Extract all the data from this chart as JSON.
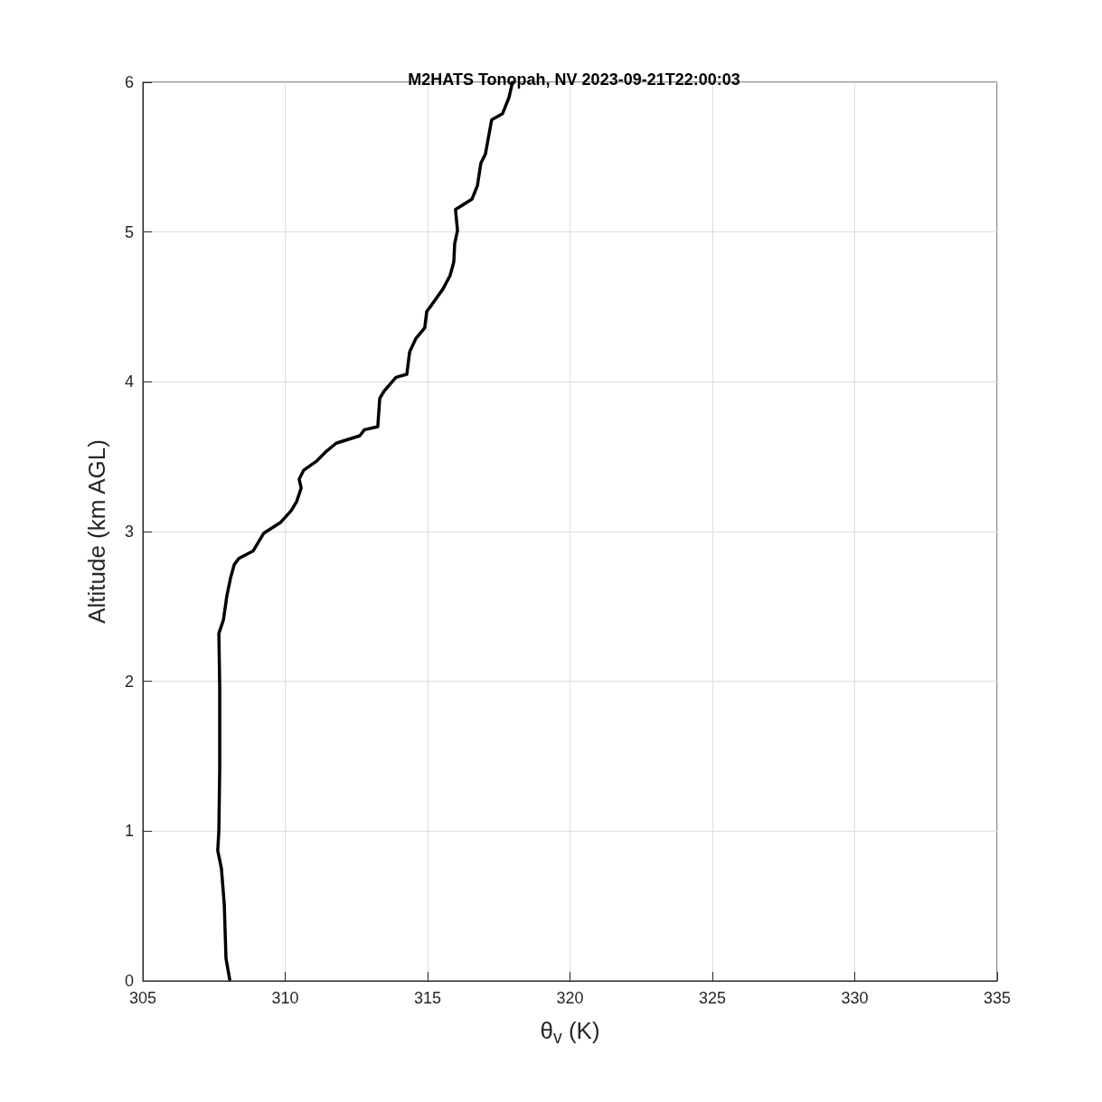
{
  "chart_data": {
    "type": "line",
    "title": "M2HATS Tonopah, NV 2023-09-21T22:00:03",
    "xlabel": "θ$_{v}$ (K)",
    "ylabel": "Altitude (km AGL)",
    "xlim": [
      305,
      335
    ],
    "xticks": [
      305,
      310,
      315,
      320,
      325,
      330,
      335
    ],
    "ylim": [
      0,
      6
    ],
    "yticks": [
      0,
      1,
      2,
      3,
      4,
      5,
      6
    ],
    "grid": true,
    "marker": "none",
    "line_style": "solid",
    "series": [
      {
        "color": "#000000",
        "x": [
          308.05,
          307.92,
          307.86,
          307.76,
          307.63,
          307.67,
          307.7,
          307.7,
          307.67,
          307.83,
          307.95,
          308.08,
          308.21,
          308.37,
          308.87,
          309.25,
          309.83,
          310.21,
          310.4,
          310.56,
          310.49,
          310.65,
          311.1,
          311.41,
          311.79,
          312.62,
          312.78,
          313.25,
          313.32,
          313.48,
          313.89,
          314.27,
          314.37,
          314.59,
          314.9,
          314.97,
          315.13,
          315.54,
          315.79,
          315.92,
          315.95,
          316.05,
          315.98,
          316.56,
          316.75,
          316.87,
          317.03,
          317.25,
          317.63,
          317.86,
          317.98
        ],
        "values": [
          0.01,
          0.15,
          0.51,
          0.75,
          0.87,
          1.0,
          1.42,
          1.96,
          2.32,
          2.41,
          2.57,
          2.69,
          2.78,
          2.82,
          2.87,
          2.99,
          3.06,
          3.14,
          3.2,
          3.29,
          3.35,
          3.41,
          3.47,
          3.53,
          3.59,
          3.64,
          3.68,
          3.7,
          3.89,
          3.94,
          4.03,
          4.05,
          4.2,
          4.29,
          4.36,
          4.47,
          4.51,
          4.62,
          4.71,
          4.8,
          4.92,
          5.01,
          5.15,
          5.22,
          5.31,
          5.46,
          5.52,
          5.75,
          5.79,
          5.9,
          6.0
        ]
      }
    ]
  }
}
